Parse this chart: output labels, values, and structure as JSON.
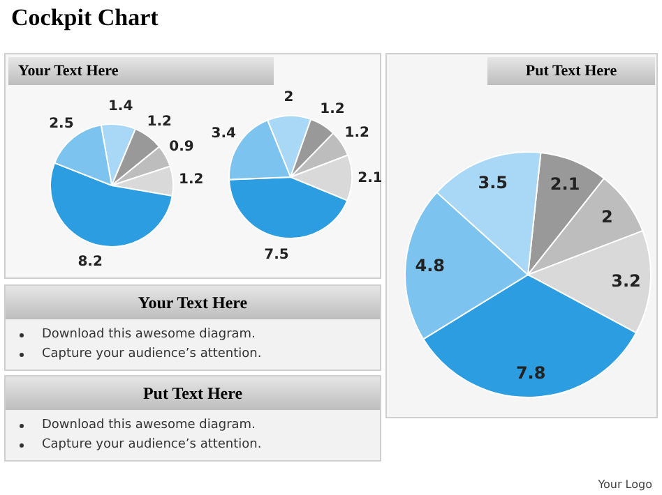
{
  "chart_data": [
    {
      "type": "pie",
      "title": "Cockpit Chart",
      "subtitle": "Your Text Here",
      "categories": [
        null,
        null,
        null,
        null,
        null,
        null
      ],
      "values": [
        1.4,
        1.2,
        0.9,
        1.2,
        8.2,
        2.5
      ],
      "colors": [
        "#a8d8f5",
        "#999999",
        "#bdbdbd",
        "#d9d9d9",
        "#2b9de0",
        "#7cc4ef"
      ],
      "data_labels": true
    },
    {
      "type": "pie",
      "categories": [
        null,
        null,
        null,
        null,
        null,
        null
      ],
      "values": [
        2,
        1.2,
        1.2,
        2.1,
        7.5,
        3.4
      ],
      "colors": [
        "#a8d8f5",
        "#999999",
        "#bdbdbd",
        "#d9d9d9",
        "#2b9de0",
        "#7cc4ef"
      ],
      "data_labels": true
    },
    {
      "type": "pie",
      "title": "Put Text Here",
      "categories": [
        null,
        null,
        null,
        null,
        null,
        null
      ],
      "values": [
        2.1,
        2,
        3.2,
        7.8,
        4.8,
        3.5
      ],
      "colors": [
        "#999999",
        "#bdbdbd",
        "#d9d9d9",
        "#2b9de0",
        "#7cc4ef",
        "#a8d8f5"
      ],
      "data_labels": true,
      "annotations": [
        "Your Logo"
      ]
    },
    {
      "type": "other",
      "title": "Your Text Here",
      "annotations": [
        "Download this awesome diagram.",
        "Capture your audience’s attention."
      ]
    },
    {
      "type": "other",
      "title": "Put Text Here",
      "annotations": [
        "Download this awesome diagram.",
        "Capture your audience’s attention."
      ]
    }
  ]
}
